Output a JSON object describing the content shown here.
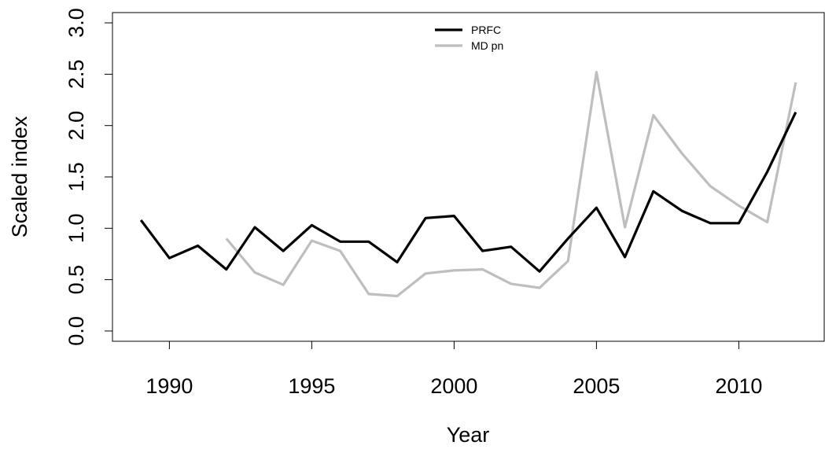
{
  "chart_data": {
    "type": "line",
    "xlabel": "Year",
    "ylabel": "Scaled index",
    "xlim": [
      1988,
      2013
    ],
    "ylim": [
      -0.1,
      3.1
    ],
    "x_ticks": [
      1990,
      1995,
      2000,
      2005,
      2010
    ],
    "x_tick_labels": [
      "1990",
      "1995",
      "2000",
      "2005",
      "2010"
    ],
    "y_ticks": [
      0.0,
      0.5,
      1.0,
      1.5,
      2.0,
      2.5,
      3.0
    ],
    "y_tick_labels": [
      "0.0",
      "0.5",
      "1.0",
      "1.5",
      "2.0",
      "2.5",
      "3.0"
    ],
    "legend_position": "top-center",
    "grid": false,
    "series": [
      {
        "name": "PRFC",
        "color": "#000000",
        "x": [
          1989,
          1990,
          1991,
          1992,
          1993,
          1994,
          1995,
          1996,
          1997,
          1998,
          1999,
          2000,
          2001,
          2002,
          2003,
          2004,
          2005,
          2006,
          2007,
          2008,
          2009,
          2010,
          2011,
          2012
        ],
        "y": [
          1.08,
          0.71,
          0.83,
          0.6,
          1.01,
          0.78,
          1.03,
          0.87,
          0.87,
          0.67,
          1.1,
          1.12,
          0.78,
          0.82,
          0.58,
          0.9,
          1.2,
          0.72,
          1.36,
          1.17,
          1.05,
          1.05,
          1.55,
          2.13
        ]
      },
      {
        "name": "MD pn",
        "color": "#bebebe",
        "x": [
          1992,
          1993,
          1994,
          1995,
          1996,
          1997,
          1998,
          1999,
          2000,
          2001,
          2002,
          2003,
          2004,
          2005,
          2006,
          2007,
          2008,
          2009,
          2010,
          2011,
          2012
        ],
        "y": [
          0.9,
          0.57,
          0.45,
          0.88,
          0.78,
          0.36,
          0.34,
          0.56,
          0.59,
          0.6,
          0.46,
          0.42,
          0.68,
          2.52,
          1.01,
          2.1,
          1.73,
          1.41,
          1.22,
          1.06,
          2.42
        ]
      }
    ]
  }
}
